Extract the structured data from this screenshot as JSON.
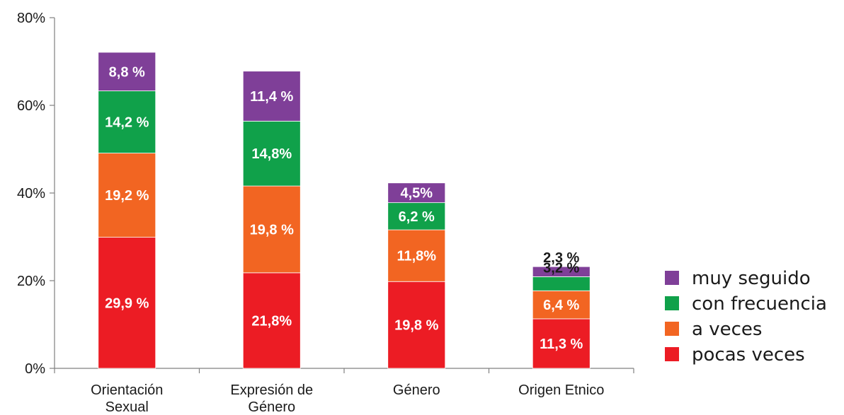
{
  "chart_data": {
    "type": "bar",
    "stacked": true,
    "categories": [
      [
        "Orientación",
        "Sexual"
      ],
      [
        "Expresión de",
        "Género"
      ],
      [
        "Género"
      ],
      [
        "Origen Etnico"
      ]
    ],
    "series": [
      {
        "name": "pocas veces",
        "color": "#ec1c24",
        "values": [
          29.9,
          21.8,
          19.8,
          11.3
        ],
        "labels": [
          "29,9 %",
          "21,8%",
          "19,8 %",
          "11,3 %"
        ]
      },
      {
        "name": "a veces",
        "color": "#f26522",
        "values": [
          19.2,
          19.8,
          11.8,
          6.4
        ],
        "labels": [
          "19,2 %",
          "19,8 %",
          "11,8%",
          "6,4 %"
        ]
      },
      {
        "name": "con frecuencia",
        "color": "#10a14a",
        "values": [
          14.2,
          14.8,
          6.2,
          3.2
        ],
        "labels": [
          "14,2 %",
          "14,8%",
          "6,2 %",
          "3,2 %"
        ]
      },
      {
        "name": "muy seguido",
        "color": "#7f3f98",
        "values": [
          8.8,
          11.4,
          4.5,
          2.3
        ],
        "labels": [
          "8,8 %",
          "11,4 %",
          "4,5%",
          "2,3 %"
        ]
      }
    ],
    "yticks": [
      "0%",
      "20%",
      "40%",
      "60%",
      "80%"
    ],
    "ylim": [
      0,
      80
    ],
    "legend_position": "right",
    "legend_order": [
      "muy seguido",
      "con frecuencia",
      "a veces",
      "pocas veces"
    ],
    "grid": false
  }
}
